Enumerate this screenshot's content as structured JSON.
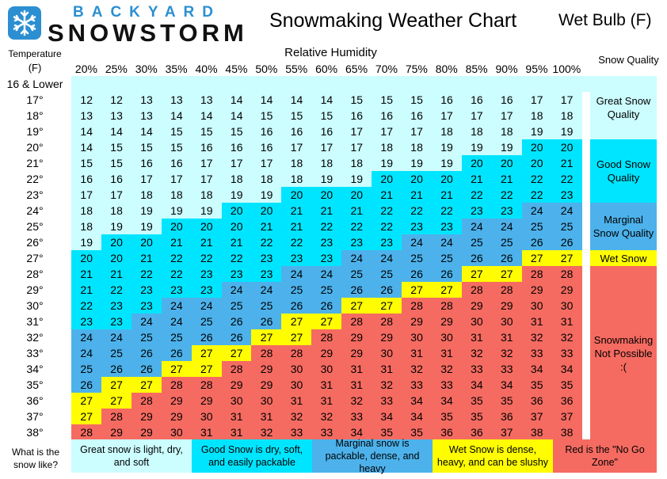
{
  "logo": {
    "top": "BACKYARD",
    "bottom": "SNOWSTORM",
    "icon": "snowflake-icon"
  },
  "title": "Snowmaking Weather Chart",
  "subtitle": "Wet Bulb (F)",
  "headers": {
    "temperature": "Temperature",
    "temperature_unit": "(F)",
    "relative_humidity": "Relative Humidity",
    "snow_quality": "Snow Quality",
    "first_row": "16 & Lower"
  },
  "colors": {
    "great": "#ccfdff",
    "good": "#00e5ff",
    "marginal": "#4db2eb",
    "wet": "#fffd00",
    "nogo": "#f56b61"
  },
  "chart_data": {
    "type": "table",
    "title": "Snowmaking Weather Chart",
    "value_label": "Wet Bulb (F)",
    "xlabel": "Relative Humidity",
    "ylabel": "Temperature (F)",
    "humidity": [
      "20%",
      "25%",
      "30%",
      "35%",
      "40%",
      "45%",
      "50%",
      "55%",
      "60%",
      "65%",
      "70%",
      "75%",
      "80%",
      "85%",
      "90%",
      "95%",
      "100%"
    ],
    "temperatures": [
      "17°",
      "18°",
      "19°",
      "20°",
      "21°",
      "22°",
      "23°",
      "24°",
      "25°",
      "26°",
      "27°",
      "28°",
      "29°",
      "30°",
      "31°",
      "32°",
      "33°",
      "34°",
      "35°",
      "36°",
      "37°",
      "38°"
    ],
    "wet_bulb": [
      [
        12,
        12,
        13,
        13,
        13,
        14,
        14,
        14,
        14,
        15,
        15,
        15,
        16,
        16,
        16,
        17,
        17
      ],
      [
        13,
        13,
        13,
        14,
        14,
        14,
        15,
        15,
        15,
        16,
        16,
        16,
        17,
        17,
        17,
        18,
        18
      ],
      [
        14,
        14,
        14,
        15,
        15,
        15,
        16,
        16,
        16,
        17,
        17,
        17,
        18,
        18,
        18,
        19,
        19
      ],
      [
        14,
        15,
        15,
        15,
        16,
        16,
        16,
        17,
        17,
        17,
        18,
        18,
        19,
        19,
        19,
        20,
        20
      ],
      [
        15,
        15,
        16,
        16,
        17,
        17,
        17,
        18,
        18,
        18,
        19,
        19,
        19,
        20,
        20,
        20,
        21
      ],
      [
        16,
        16,
        17,
        17,
        17,
        18,
        18,
        18,
        19,
        19,
        20,
        20,
        20,
        21,
        21,
        22,
        22
      ],
      [
        17,
        17,
        18,
        18,
        18,
        19,
        19,
        20,
        20,
        20,
        21,
        21,
        21,
        22,
        22,
        22,
        23
      ],
      [
        18,
        18,
        19,
        19,
        19,
        20,
        20,
        21,
        21,
        21,
        22,
        22,
        22,
        23,
        23,
        24,
        24
      ],
      [
        18,
        19,
        19,
        20,
        20,
        20,
        21,
        21,
        22,
        22,
        22,
        23,
        23,
        24,
        24,
        25,
        25
      ],
      [
        19,
        20,
        20,
        21,
        21,
        21,
        22,
        22,
        23,
        23,
        23,
        24,
        24,
        25,
        25,
        26,
        26
      ],
      [
        20,
        20,
        21,
        22,
        22,
        22,
        23,
        23,
        23,
        24,
        24,
        25,
        25,
        26,
        26,
        27,
        27
      ],
      [
        21,
        21,
        22,
        22,
        23,
        23,
        23,
        24,
        24,
        25,
        25,
        26,
        26,
        27,
        27,
        28,
        28
      ],
      [
        21,
        22,
        23,
        23,
        23,
        24,
        24,
        25,
        25,
        26,
        26,
        27,
        27,
        28,
        28,
        29,
        29
      ],
      [
        22,
        23,
        23,
        24,
        24,
        25,
        25,
        26,
        26,
        27,
        27,
        28,
        28,
        29,
        29,
        30,
        30
      ],
      [
        23,
        23,
        24,
        24,
        25,
        26,
        26,
        27,
        27,
        28,
        28,
        29,
        29,
        30,
        30,
        31,
        31
      ],
      [
        24,
        24,
        25,
        25,
        26,
        26,
        27,
        27,
        28,
        29,
        29,
        30,
        30,
        31,
        31,
        32,
        32
      ],
      [
        24,
        25,
        26,
        26,
        27,
        27,
        28,
        28,
        29,
        29,
        30,
        31,
        31,
        32,
        32,
        33,
        33
      ],
      [
        25,
        26,
        26,
        27,
        27,
        28,
        29,
        30,
        30,
        31,
        31,
        32,
        32,
        33,
        33,
        34,
        34
      ],
      [
        26,
        27,
        27,
        28,
        28,
        29,
        29,
        30,
        31,
        31,
        32,
        33,
        33,
        34,
        34,
        35,
        35
      ],
      [
        27,
        27,
        28,
        29,
        29,
        30,
        30,
        31,
        31,
        32,
        33,
        34,
        34,
        35,
        35,
        36,
        36
      ],
      [
        27,
        28,
        29,
        29,
        30,
        31,
        31,
        32,
        32,
        33,
        34,
        34,
        35,
        35,
        36,
        37,
        37
      ],
      [
        28,
        29,
        29,
        30,
        31,
        31,
        32,
        33,
        33,
        34,
        35,
        35,
        36,
        36,
        37,
        38,
        38
      ]
    ],
    "categories": [
      {
        "name": "Great Snow Quality",
        "range": "12–19",
        "color": "#ccfdff"
      },
      {
        "name": "Good Snow Quality",
        "range": "20–23",
        "color": "#00e5ff"
      },
      {
        "name": "Marginal Snow Quality",
        "range": "24–26",
        "color": "#4db2eb"
      },
      {
        "name": "Wet Snow",
        "range": "27",
        "color": "#fffd00"
      },
      {
        "name": "Snowmaking Not Possible :(",
        "range": "28+",
        "color": "#f56b61"
      }
    ]
  },
  "quality_labels": {
    "great": "Great Snow Quality",
    "good": "Good Snow Quality",
    "marginal": "Marginal Snow Quality",
    "wet": "Wet Snow",
    "nogo": "Snowmaking Not Possible :("
  },
  "footer": {
    "question": "What is the snow like?",
    "great": "Great snow is light, dry, and soft",
    "good": "Good Snow is dry, soft, and easily packable",
    "marginal": "Marginal snow is packable, dense, and heavy",
    "wet": "Wet Snow is dense, heavy, and can be slushy",
    "nogo": "Red is the \"No Go Zone\""
  }
}
